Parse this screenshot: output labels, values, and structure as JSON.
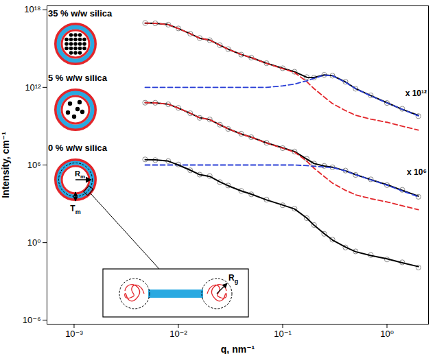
{
  "chart_data": {
    "type": "line",
    "log": true,
    "grid": false,
    "xlabel": "q, nm⁻¹",
    "ylabel": "Intensity, cm⁻¹",
    "xlim": [
      0.00055,
      2.5
    ],
    "ylim": [
      5e-07,
      2e+18
    ],
    "xticks": [
      {
        "value": 0.001,
        "label": "10⁻³"
      },
      {
        "value": 0.01,
        "label": "10⁻²"
      },
      {
        "value": 0.1,
        "label": "10⁻¹"
      },
      {
        "value": 1,
        "label": "10⁰"
      }
    ],
    "yticks": [
      {
        "value": 1e-06,
        "label": "10⁻⁶"
      },
      {
        "value": 1,
        "label": "10⁰"
      },
      {
        "value": 1000000.0,
        "label": "10⁶"
      },
      {
        "value": 1000000000000.0,
        "label": "10¹²"
      },
      {
        "value": 1e+18,
        "label": "10¹⁸"
      }
    ],
    "x": [
      0.0048,
      0.006,
      0.008,
      0.01,
      0.013,
      0.016,
      0.02,
      0.025,
      0.03,
      0.04,
      0.05,
      0.07,
      0.1,
      0.13,
      0.17,
      0.2,
      0.25,
      0.3,
      0.4,
      0.5,
      0.7,
      1.0,
      1.4,
      2.0
    ],
    "groups": [
      {
        "label": "35 % w/w silica",
        "annotation": "x 10¹²",
        "series": [
          {
            "type": "scatter",
            "marker": "circle",
            "color": "#8c8c8c",
            "values": [
              9.4e+16,
              8.9e+16,
              7e+16,
              3.6e+16,
              1.4e+16,
              6500000000000000.0,
              4400000000000000.0,
              1800000000000000.0,
              900000000000000.0,
              340000000000000.0,
              200000000000000.0,
              74000000000000.0,
              30000000000000.0,
              16000000000000.0,
              6200000000000.0,
              5700000000000.0,
              9300000000000.0,
              8000000000000.0,
              2700000000000.0,
              780000000000.0,
              240000000000.0,
              62000000000.0,
              22000000000.0,
              6000000000.0
            ]
          },
          {
            "type": "line",
            "line_style": "solid",
            "color": "#000000",
            "values": [
              9.3e+16,
              8.9e+16,
              7.1e+16,
              3.5e+16,
              1.4e+16,
              6300000000000000.0,
              4500000000000000.0,
              1800000000000000.0,
              890000000000000.0,
              350000000000000.0,
              200000000000000.0,
              72000000000000.0,
              30000000000000.0,
              16000000000000.0,
              6000000000000.0,
              5800000000000.0,
              9100000000000.0,
              8100000000000.0,
              2600000000000.0,
              810000000000.0,
              230000000000.0,
              65000000000.0,
              20000000000.0,
              6800000000.0
            ]
          },
          {
            "type": "line",
            "line_style": "dashed",
            "color": "#e3262b",
            "values": [
              9.3e+16,
              8.9e+16,
              7.1e+16,
              3.5e+16,
              1.4e+16,
              6300000000000000.0,
              4500000000000000.0,
              1800000000000000.0,
              890000000000000.0,
              350000000000000.0,
              200000000000000.0,
              71000000000000.0,
              28000000000000.0,
              14000000000000.0,
              2800000000000.0,
              790000000000.0,
              180000000000.0,
              56000000000.0,
              16000000000.0,
              7100000000.0,
              3500000000.0,
              2000000000.0,
              1000000000.0,
              500000000.0
            ]
          },
          {
            "type": "line",
            "line_style": "dashed",
            "color": "#2a3fd6",
            "values": [
              1000000000000.0,
              1000000000000.0,
              1000000000000.0,
              1000000000000.0,
              1000000000000.0,
              1000000000000.0,
              1000000000000.0,
              1000000000000.0,
              1000000000000.0,
              1000000000000.0,
              1000000000000.0,
              1000000000000.0,
              1300000000000.0,
              1800000000000.0,
              3200000000000.0,
              5000000000000.0,
              8900000000000.0,
              7900000000000.0,
              2500000000000.0,
              790000000000.0,
              220000000000.0,
              63000000000.0,
              20000000000.0,
              6300000000.0
            ]
          }
        ]
      },
      {
        "label": "5 % w/w silica",
        "annotation": "x 10⁶",
        "series": [
          {
            "type": "scatter",
            "marker": "circle",
            "color": "#8c8c8c",
            "values": [
              65000000000.0,
              64000000000.0,
              49000000000.0,
              26000000000.0,
              10000000000.0,
              4400000000.0,
              3300000000.0,
              1300000000.0,
              610000000.0,
              260000000.0,
              140000000.0,
              52000000.0,
              20000000.0,
              11000000.0,
              3000000.0,
              1300000.0,
              850000.0,
              660000.0,
              370000.0,
              170000.0,
              78000.0,
              28000.0,
              12000.0,
              3500.0
            ]
          },
          {
            "type": "line",
            "line_style": "solid",
            "color": "#000000",
            "values": [
              66000000000.0,
              63000000000.0,
              50000000000.0,
              25000000000.0,
              10000000000.0,
              4500000000.0,
              3200000000.0,
              1300000000.0,
              630000000.0,
              250000000.0,
              140000000.0,
              51000000.0,
              21000000.0,
              11000000.0,
              2900000.0,
              1300000.0,
              830000.0,
              680000.0,
              360000.0,
              180000.0,
              74000.0,
              30000.0,
              11000.0,
              3900.0
            ]
          },
          {
            "type": "line",
            "line_style": "dashed",
            "color": "#e3262b",
            "values": [
              66000000000.0,
              63000000000.0,
              50000000000.0,
              25000000000.0,
              10000000000.0,
              4500000000.0,
              3200000000.0,
              1300000000.0,
              630000000.0,
              250000000.0,
              140000000.0,
              50000000.0,
              20000000.0,
              10000000.0,
              2000000.0,
              560000.0,
              130000.0,
              40000.0,
              11000.0,
              5000.0,
              2500.0,
              1400.0,
              710.0,
              350.0
            ]
          },
          {
            "type": "line",
            "line_style": "dashed",
            "color": "#2a3fd6",
            "values": [
              1000000.0,
              1000000.0,
              1000000.0,
              1000000.0,
              1000000.0,
              1000000.0,
              1000000.0,
              1000000.0,
              1000000.0,
              1000000.0,
              1000000.0,
              1000000.0,
              1000000.0,
              1000000.0,
              890000.0,
              790000.0,
              710000.0,
              630000.0,
              350000.0,
              180000.0,
              71000.0,
              28000.0,
              10000.0,
              3500.0
            ]
          }
        ]
      },
      {
        "label": "0 % w/w silica",
        "series": [
          {
            "type": "scatter",
            "marker": "circle",
            "color": "#8c8c8c",
            "values": [
              2700000.0,
              2400000.0,
              2000000.0,
              1100000.0,
              390000.0,
              180000.0,
              140000.0,
              48000.0,
              26000.0,
              10000.0,
              5400.0,
              2100.0,
              770.0,
              420.0,
              78,
              23,
              4.8,
              1.7,
              0.42,
              0.21,
              0.11,
              0.05,
              0.03,
              0.012
            ]
          },
          {
            "type": "line",
            "line_style": "solid",
            "color": "#000000",
            "values": [
              2600000.0,
              2500000.0,
              2000000.0,
              1000000.0,
              400000.0,
              180000.0,
              130000.0,
              50000.0,
              25000.0,
              10000.0,
              5600.0,
              2000.0,
              800.0,
              400.0,
              80,
              22,
              5.0,
              1.6,
              0.45,
              0.2,
              0.1,
              0.056,
              0.028,
              0.014
            ]
          }
        ]
      }
    ],
    "diagram_labels": {
      "membrane_radius": "Rm",
      "membrane_thickness": "Tm",
      "radius_of_gyration": "Rg"
    }
  }
}
